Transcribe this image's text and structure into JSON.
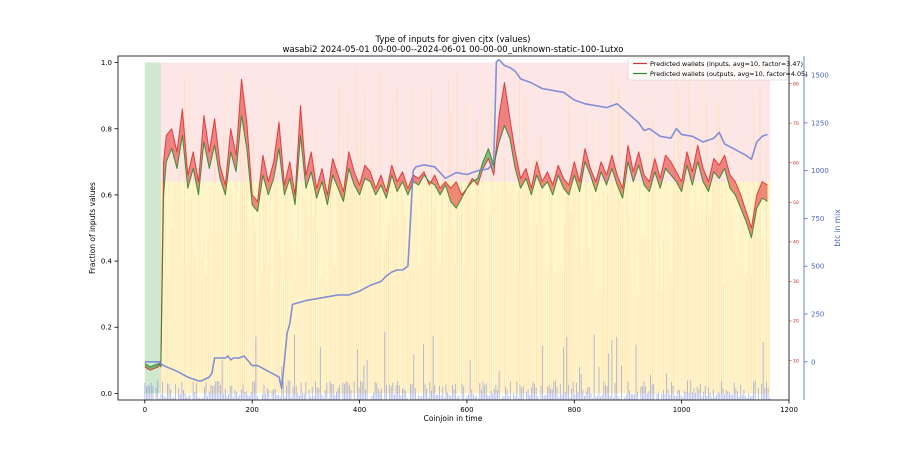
{
  "chart_data": {
    "type": "line",
    "title": "Type of inputs for given cjtx (values)",
    "subtitle": "wasabi2 2024-05-01 00-00-00--2024-06-01 00-00-00_unknown-static-100-1utxo",
    "xlabel": "Coinjoin in time",
    "ylabel": "Fraction of inputs values",
    "y2label": "btc in mix",
    "xlim": [
      -50,
      1200
    ],
    "ylim": [
      -0.02,
      1.02
    ],
    "y2lim": [
      -200,
      1600
    ],
    "y3lim": [
      0,
      87
    ],
    "x_ticks": [
      0,
      200,
      400,
      600,
      800,
      1000,
      1200
    ],
    "y_ticks": [
      0.0,
      0.2,
      0.4,
      0.6,
      0.8,
      1.0
    ],
    "y2_ticks": [
      0,
      250,
      500,
      750,
      1000,
      1250,
      1500
    ],
    "y3_ticks": [
      10,
      20,
      30,
      40,
      50,
      60,
      70,
      80
    ],
    "grid": false,
    "legend_position": "top-right",
    "series": [
      {
        "name": "Predicted wallets (inputs, avg=10, factor=3.47)",
        "color": "#e03030",
        "axis": "left",
        "x": [
          0,
          10,
          25,
          30,
          35,
          40,
          50,
          60,
          70,
          80,
          90,
          100,
          110,
          120,
          130,
          140,
          150,
          160,
          170,
          180,
          190,
          200,
          210,
          220,
          230,
          240,
          250,
          260,
          270,
          280,
          290,
          300,
          310,
          320,
          330,
          340,
          350,
          360,
          370,
          380,
          390,
          400,
          410,
          420,
          430,
          440,
          450,
          460,
          470,
          480,
          490,
          500,
          510,
          520,
          530,
          540,
          550,
          560,
          570,
          580,
          590,
          600,
          610,
          620,
          630,
          640,
          650,
          660,
          670,
          680,
          690,
          700,
          710,
          720,
          730,
          740,
          750,
          760,
          770,
          780,
          790,
          800,
          810,
          820,
          830,
          840,
          850,
          860,
          870,
          880,
          890,
          900,
          910,
          920,
          930,
          940,
          950,
          960,
          970,
          980,
          990,
          1000,
          1010,
          1020,
          1030,
          1040,
          1050,
          1060,
          1070,
          1080,
          1090,
          1100,
          1110,
          1120,
          1130,
          1140,
          1150,
          1160
        ],
        "values": [
          0.08,
          0.07,
          0.08,
          0.1,
          0.7,
          0.78,
          0.8,
          0.73,
          0.86,
          0.66,
          0.73,
          0.64,
          0.84,
          0.73,
          0.83,
          0.69,
          0.63,
          0.8,
          0.72,
          0.95,
          0.82,
          0.6,
          0.58,
          0.72,
          0.64,
          0.7,
          0.82,
          0.63,
          0.7,
          0.6,
          0.87,
          0.66,
          0.73,
          0.62,
          0.68,
          0.6,
          0.71,
          0.66,
          0.61,
          0.73,
          0.67,
          0.63,
          0.69,
          0.67,
          0.62,
          0.66,
          0.61,
          0.69,
          0.64,
          0.67,
          0.62,
          0.66,
          0.65,
          0.67,
          0.63,
          0.66,
          0.62,
          0.64,
          0.62,
          0.64,
          0.6,
          0.62,
          0.65,
          0.63,
          0.68,
          0.71,
          0.66,
          0.84,
          0.94,
          0.83,
          0.73,
          0.65,
          0.68,
          0.62,
          0.7,
          0.64,
          0.67,
          0.63,
          0.69,
          0.65,
          0.63,
          0.7,
          0.64,
          0.74,
          0.68,
          0.64,
          0.7,
          0.66,
          0.72,
          0.66,
          0.62,
          0.75,
          0.67,
          0.73,
          0.66,
          0.64,
          0.71,
          0.65,
          0.72,
          0.7,
          0.67,
          0.64,
          0.73,
          0.67,
          0.75,
          0.68,
          0.64,
          0.71,
          0.69,
          0.72,
          0.66,
          0.64,
          0.6,
          0.55,
          0.5,
          0.6,
          0.64,
          0.63
        ]
      },
      {
        "name": "Predicted wallets (outputs, avg=10, factor=4.05)",
        "color": "#2a8a2a",
        "axis": "left",
        "x": [
          0,
          10,
          25,
          30,
          35,
          40,
          50,
          60,
          70,
          80,
          90,
          100,
          110,
          120,
          130,
          140,
          150,
          160,
          170,
          180,
          190,
          200,
          210,
          220,
          230,
          240,
          250,
          260,
          270,
          280,
          290,
          300,
          310,
          320,
          330,
          340,
          350,
          360,
          370,
          380,
          390,
          400,
          410,
          420,
          430,
          440,
          450,
          460,
          470,
          480,
          490,
          500,
          510,
          520,
          530,
          540,
          550,
          560,
          570,
          580,
          590,
          600,
          610,
          620,
          630,
          640,
          650,
          660,
          670,
          680,
          690,
          700,
          710,
          720,
          730,
          740,
          750,
          760,
          770,
          780,
          790,
          800,
          810,
          820,
          830,
          840,
          850,
          860,
          870,
          880,
          890,
          900,
          910,
          920,
          930,
          940,
          950,
          960,
          970,
          980,
          990,
          1000,
          1010,
          1020,
          1030,
          1040,
          1050,
          1060,
          1070,
          1080,
          1090,
          1100,
          1110,
          1120,
          1130,
          1140,
          1150,
          1160
        ],
        "values": [
          0.09,
          0.08,
          0.09,
          0.08,
          0.6,
          0.7,
          0.74,
          0.68,
          0.78,
          0.62,
          0.68,
          0.6,
          0.76,
          0.68,
          0.75,
          0.65,
          0.6,
          0.73,
          0.67,
          0.84,
          0.74,
          0.57,
          0.55,
          0.66,
          0.6,
          0.65,
          0.74,
          0.6,
          0.65,
          0.57,
          0.78,
          0.62,
          0.67,
          0.59,
          0.64,
          0.57,
          0.66,
          0.62,
          0.58,
          0.68,
          0.63,
          0.6,
          0.65,
          0.64,
          0.6,
          0.63,
          0.59,
          0.66,
          0.61,
          0.64,
          0.6,
          0.64,
          0.63,
          0.66,
          0.64,
          0.63,
          0.6,
          0.63,
          0.58,
          0.56,
          0.59,
          0.62,
          0.64,
          0.65,
          0.7,
          0.74,
          0.69,
          0.76,
          0.81,
          0.77,
          0.68,
          0.62,
          0.65,
          0.6,
          0.66,
          0.62,
          0.64,
          0.6,
          0.66,
          0.62,
          0.6,
          0.66,
          0.61,
          0.7,
          0.66,
          0.61,
          0.67,
          0.63,
          0.68,
          0.63,
          0.59,
          0.7,
          0.64,
          0.69,
          0.63,
          0.61,
          0.67,
          0.62,
          0.68,
          0.66,
          0.64,
          0.61,
          0.69,
          0.63,
          0.7,
          0.64,
          0.61,
          0.67,
          0.65,
          0.68,
          0.62,
          0.6,
          0.56,
          0.52,
          0.47,
          0.56,
          0.59,
          0.58
        ]
      },
      {
        "name": "btc in mix",
        "color": "#6f7fd6",
        "axis": "right",
        "x": [
          0,
          10,
          20,
          28,
          30,
          35,
          60,
          80,
          100,
          105,
          120,
          125,
          130,
          150,
          155,
          160,
          165,
          175,
          185,
          200,
          210,
          230,
          250,
          255,
          265,
          270,
          275,
          300,
          320,
          340,
          360,
          380,
          400,
          420,
          440,
          450,
          460,
          470,
          480,
          490,
          500,
          505,
          520,
          540,
          560,
          580,
          600,
          620,
          640,
          650,
          655,
          660,
          670,
          680,
          690,
          700,
          720,
          740,
          760,
          780,
          800,
          820,
          840,
          860,
          880,
          900,
          920,
          930,
          940,
          960,
          980,
          990,
          1000,
          1020,
          1040,
          1060,
          1070,
          1080,
          1100,
          1120,
          1130,
          1140,
          1150,
          1160
        ],
        "values": [
          0,
          0,
          0,
          0,
          -10,
          -20,
          -50,
          -80,
          -100,
          -100,
          -80,
          -60,
          20,
          20,
          30,
          10,
          20,
          20,
          30,
          -20,
          -20,
          -50,
          -80,
          -140,
          150,
          200,
          300,
          320,
          330,
          340,
          350,
          350,
          370,
          400,
          420,
          450,
          470,
          480,
          480,
          500,
          1000,
          1020,
          1030,
          1020,
          960,
          990,
          980,
          1000,
          1010,
          1050,
          1570,
          1580,
          1550,
          1540,
          1520,
          1480,
          1460,
          1430,
          1420,
          1410,
          1370,
          1350,
          1340,
          1330,
          1350,
          1300,
          1250,
          1210,
          1220,
          1180,
          1170,
          1220,
          1190,
          1180,
          1150,
          1170,
          1200,
          1140,
          1110,
          1080,
          1060,
          1150,
          1180,
          1190
        ]
      }
    ]
  }
}
